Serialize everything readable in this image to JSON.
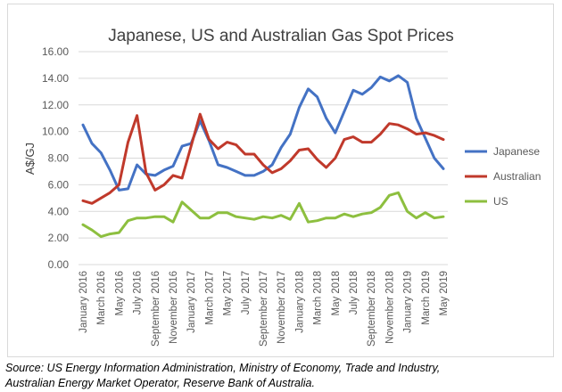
{
  "chart_data": {
    "type": "line",
    "title": "Japanese, US and Australian Gas Spot Prices",
    "xlabel": "",
    "ylabel": "A$/GJ",
    "ylim": [
      0,
      16
    ],
    "yticks": [
      "0.00",
      "2.00",
      "4.00",
      "6.00",
      "8.00",
      "10.00",
      "12.00",
      "14.00",
      "16.00"
    ],
    "grid": true,
    "legend_position": "right",
    "x": [
      "January 2016",
      "February 2016",
      "March 2016",
      "April 2016",
      "May 2016",
      "June 2016",
      "July 2016",
      "August 2016",
      "September 2016",
      "October 2016",
      "November 2016",
      "December 2016",
      "January 2017",
      "February 2017",
      "March 2017",
      "April 2017",
      "May 2017",
      "June 2017",
      "July 2017",
      "August 2017",
      "September 2017",
      "October 2017",
      "November 2017",
      "December 2017",
      "January 2018",
      "February 2018",
      "March 2018",
      "April 2018",
      "May 2018",
      "June 2018",
      "July 2018",
      "August 2018",
      "September 2018",
      "October 2018",
      "November 2018",
      "December 2018",
      "January 2019",
      "February 2019",
      "March 2019",
      "April 2019",
      "May 2019"
    ],
    "xtick_labels": [
      "January 2016",
      "March 2016",
      "May 2016",
      "July 2016",
      "September 2016",
      "November 2016",
      "January 2017",
      "March 2017",
      "May 2017",
      "July 2017",
      "September 2017",
      "November 2017",
      "January 2018",
      "March 2018",
      "May 2018",
      "July 2018",
      "September 2018",
      "November 2018",
      "January 2019",
      "March 2019",
      "May 2019"
    ],
    "series": [
      {
        "name": "Japanese",
        "color": "#4472c4",
        "values": [
          10.5,
          9.1,
          8.4,
          7.1,
          5.6,
          5.7,
          7.5,
          6.8,
          6.7,
          7.1,
          7.4,
          8.9,
          9.1,
          10.8,
          9.3,
          7.5,
          7.3,
          7.0,
          6.7,
          6.7,
          7.0,
          7.5,
          8.8,
          9.8,
          11.8,
          13.2,
          12.6,
          11.0,
          9.9,
          11.5,
          13.1,
          12.8,
          13.3,
          14.1,
          13.8,
          14.2,
          13.7,
          11.0,
          9.5,
          8.0,
          7.2
        ]
      },
      {
        "name": "Australian",
        "color": "#c0392b",
        "values": [
          4.8,
          4.6,
          5.0,
          5.4,
          6.0,
          9.2,
          11.2,
          6.9,
          5.6,
          6.0,
          6.7,
          6.5,
          8.9,
          11.3,
          9.4,
          8.7,
          9.2,
          9.0,
          8.3,
          8.3,
          7.5,
          6.9,
          7.2,
          7.8,
          8.6,
          8.7,
          7.9,
          7.3,
          8.0,
          9.4,
          9.6,
          9.2,
          9.2,
          9.8,
          10.6,
          10.5,
          10.2,
          9.8,
          9.9,
          9.7,
          9.4
        ]
      },
      {
        "name": "US",
        "color": "#8dbf3f",
        "values": [
          3.0,
          2.6,
          2.1,
          2.3,
          2.4,
          3.3,
          3.5,
          3.5,
          3.6,
          3.6,
          3.2,
          4.7,
          4.1,
          3.5,
          3.5,
          3.9,
          3.9,
          3.6,
          3.5,
          3.4,
          3.6,
          3.5,
          3.7,
          3.4,
          4.6,
          3.2,
          3.3,
          3.5,
          3.5,
          3.8,
          3.6,
          3.8,
          3.9,
          4.3,
          5.2,
          5.4,
          4.0,
          3.5,
          3.9,
          3.5,
          3.6
        ]
      }
    ]
  },
  "source": {
    "line1": "Source: US Energy Information Administration, Ministry of Economy, Trade and Industry,",
    "line2": "Australian Energy Market Operator, Reserve Bank of Australia."
  }
}
